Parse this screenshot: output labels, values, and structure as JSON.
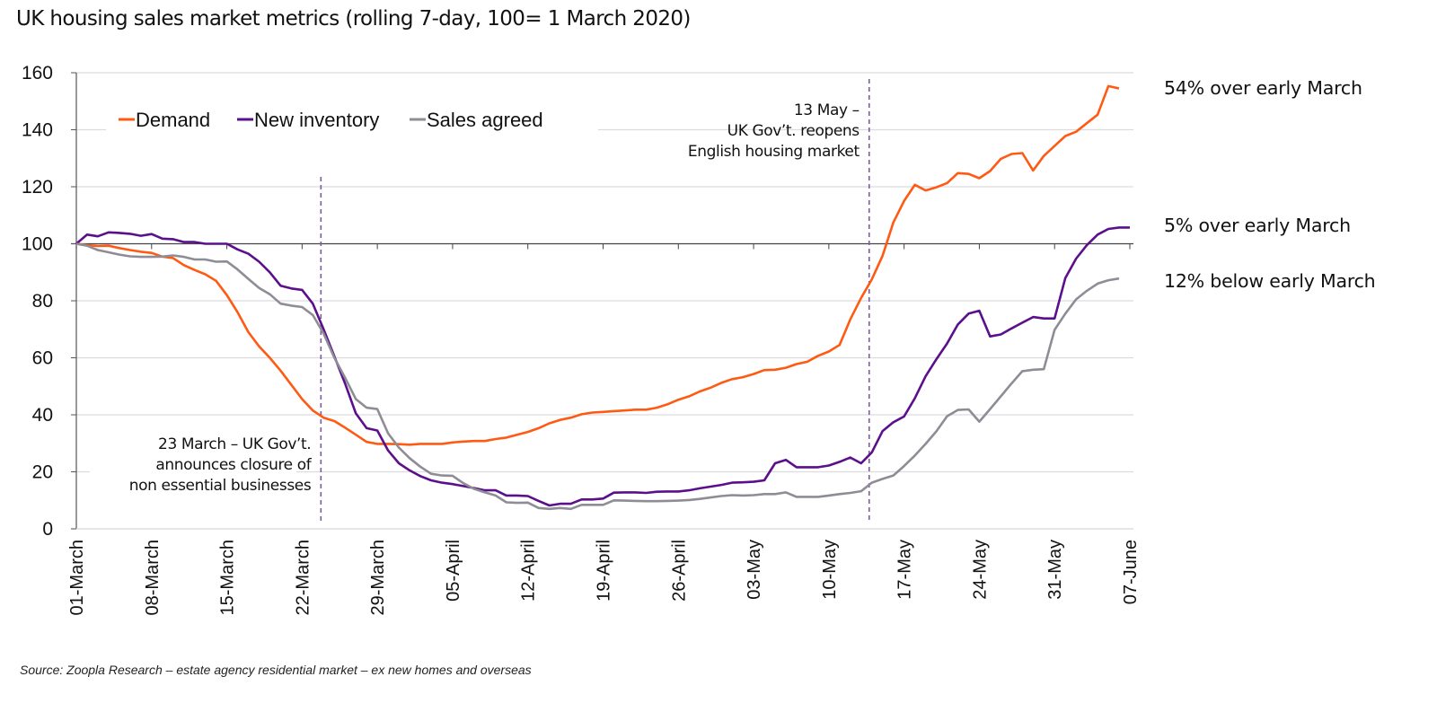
{
  "chart_data": {
    "type": "line",
    "title": "UK housing sales market metrics (rolling 7-day, 100= 1 March 2020)",
    "source": "Source: Zoopla Research – estate agency residential market – ex new homes and overseas",
    "xlabel": "",
    "ylabel": "",
    "ylim": [
      0,
      160
    ],
    "yticks": [
      0,
      20,
      40,
      60,
      80,
      100,
      120,
      140,
      160
    ],
    "baseline": 100,
    "grid": true,
    "legend_position": "top-left",
    "x_start": "01-March",
    "x_days": 98,
    "xtick_days": [
      0,
      7,
      14,
      21,
      28,
      35,
      42,
      49,
      56,
      63,
      70,
      77,
      84,
      91,
      98
    ],
    "xtick_labels": [
      "01-March",
      "08-March",
      "15-March",
      "22-March",
      "29-March",
      "05-April",
      "12-April",
      "19-April",
      "26-April",
      "03-May",
      "10-May",
      "17-May",
      "24-May",
      "31-May",
      "07-June"
    ],
    "series": [
      {
        "name": "Demand",
        "color": "#ff5a14",
        "points": [
          [
            0,
            100
          ],
          [
            1,
            99.5
          ],
          [
            2,
            99.2
          ],
          [
            3,
            99.3
          ],
          [
            4,
            98.5
          ],
          [
            5,
            97.8
          ],
          [
            6,
            97.2
          ],
          [
            7,
            96.8
          ],
          [
            8,
            95.5
          ],
          [
            9,
            95
          ],
          [
            10,
            92.5
          ],
          [
            11,
            90.8
          ],
          [
            12,
            89.3
          ],
          [
            13,
            87
          ],
          [
            14,
            82
          ],
          [
            15,
            76
          ],
          [
            16,
            69
          ],
          [
            17,
            64
          ],
          [
            18,
            60
          ],
          [
            19,
            55.5
          ],
          [
            20,
            50.5
          ],
          [
            21,
            45.5
          ],
          [
            22,
            41.5
          ],
          [
            23,
            39
          ],
          [
            24,
            37.8
          ],
          [
            25,
            35.5
          ],
          [
            26,
            33
          ],
          [
            27,
            30.5
          ],
          [
            28,
            29.8
          ],
          [
            29,
            29.8
          ],
          [
            30,
            29.7
          ],
          [
            31,
            29.5
          ],
          [
            32,
            29.8
          ],
          [
            33,
            29.8
          ],
          [
            34,
            29.8
          ],
          [
            35,
            30.3
          ],
          [
            36,
            30.6
          ],
          [
            37,
            30.8
          ],
          [
            38,
            30.8
          ],
          [
            39,
            31.5
          ],
          [
            40,
            32
          ],
          [
            41,
            33
          ],
          [
            42,
            34
          ],
          [
            43,
            35.3
          ],
          [
            44,
            37
          ],
          [
            45,
            38.2
          ],
          [
            46,
            39
          ],
          [
            47,
            40.2
          ],
          [
            48,
            40.8
          ],
          [
            49,
            41
          ],
          [
            50,
            41.3
          ],
          [
            51,
            41.5
          ],
          [
            52,
            41.8
          ],
          [
            53,
            41.8
          ],
          [
            54,
            42.5
          ],
          [
            55,
            43.7
          ],
          [
            56,
            45.3
          ],
          [
            57,
            46.5
          ],
          [
            58,
            48.2
          ],
          [
            59,
            49.5
          ],
          [
            60,
            51.2
          ],
          [
            61,
            52.5
          ],
          [
            62,
            53.2
          ],
          [
            63,
            54.3
          ],
          [
            64,
            55.7
          ],
          [
            65,
            55.8
          ],
          [
            66,
            56.5
          ],
          [
            67,
            57.8
          ],
          [
            68,
            58.6
          ],
          [
            69,
            60.7
          ],
          [
            70,
            62.2
          ],
          [
            71,
            64.5
          ],
          [
            72,
            73.5
          ],
          [
            73,
            81
          ],
          [
            74,
            87.5
          ],
          [
            75,
            95.8
          ],
          [
            76,
            107.5
          ],
          [
            77,
            115
          ],
          [
            78,
            120.7
          ],
          [
            79,
            118.7
          ],
          [
            80,
            119.8
          ],
          [
            81,
            121.3
          ],
          [
            82,
            124.8
          ],
          [
            83,
            124.5
          ],
          [
            84,
            123
          ],
          [
            85,
            125.5
          ],
          [
            86,
            129.8
          ],
          [
            87,
            131.5
          ],
          [
            88,
            131.8
          ],
          [
            89,
            125.7
          ],
          [
            90,
            130.8
          ],
          [
            91,
            134.3
          ],
          [
            92,
            137.8
          ],
          [
            93,
            139.3
          ],
          [
            94,
            142.3
          ],
          [
            95,
            145.3
          ],
          [
            96,
            155.3
          ],
          [
            97,
            154.5
          ]
        ],
        "end_label": "54% over early March"
      },
      {
        "name": "New inventory",
        "color": "#5c0f8b",
        "points": [
          [
            0,
            100
          ],
          [
            1,
            103.2
          ],
          [
            2,
            102.6
          ],
          [
            3,
            104
          ],
          [
            4,
            103.8
          ],
          [
            5,
            103.5
          ],
          [
            6,
            102.8
          ],
          [
            7,
            103.4
          ],
          [
            8,
            101.8
          ],
          [
            9,
            101.6
          ],
          [
            10,
            100.6
          ],
          [
            11,
            100.6
          ],
          [
            12,
            100
          ],
          [
            13,
            100
          ],
          [
            14,
            100
          ],
          [
            15,
            98
          ],
          [
            16,
            96.5
          ],
          [
            17,
            93.7
          ],
          [
            18,
            90
          ],
          [
            19,
            85.3
          ],
          [
            20,
            84.3
          ],
          [
            21,
            83.8
          ],
          [
            22,
            79
          ],
          [
            23,
            70
          ],
          [
            24,
            60.5
          ],
          [
            25,
            51
          ],
          [
            26,
            40.5
          ],
          [
            27,
            35.3
          ],
          [
            28,
            34.5
          ],
          [
            29,
            27.5
          ],
          [
            30,
            23
          ],
          [
            31,
            20.5
          ],
          [
            32,
            18.5
          ],
          [
            33,
            17
          ],
          [
            34,
            16.2
          ],
          [
            35,
            15.7
          ],
          [
            36,
            15
          ],
          [
            37,
            14.3
          ],
          [
            38,
            13.5
          ],
          [
            39,
            13.5
          ],
          [
            40,
            11.7
          ],
          [
            41,
            11.7
          ],
          [
            42,
            11.5
          ],
          [
            43,
            9.8
          ],
          [
            44,
            8.2
          ],
          [
            45,
            8.8
          ],
          [
            46,
            8.8
          ],
          [
            47,
            10.3
          ],
          [
            48,
            10.3
          ],
          [
            49,
            10.6
          ],
          [
            50,
            12.7
          ],
          [
            51,
            12.8
          ],
          [
            52,
            12.8
          ],
          [
            53,
            12.6
          ],
          [
            54,
            13
          ],
          [
            55,
            13.1
          ],
          [
            56,
            13.1
          ],
          [
            57,
            13.5
          ],
          [
            58,
            14.2
          ],
          [
            59,
            14.8
          ],
          [
            60,
            15.4
          ],
          [
            61,
            16.2
          ],
          [
            62,
            16.3
          ],
          [
            63,
            16.5
          ],
          [
            64,
            17
          ],
          [
            65,
            23
          ],
          [
            66,
            24.2
          ],
          [
            67,
            21.6
          ],
          [
            68,
            21.6
          ],
          [
            69,
            21.6
          ],
          [
            70,
            22.2
          ],
          [
            71,
            23.5
          ],
          [
            72,
            25
          ],
          [
            73,
            23
          ],
          [
            74,
            26.8
          ],
          [
            75,
            34.3
          ],
          [
            76,
            37.4
          ],
          [
            77,
            39.4
          ],
          [
            78,
            45.8
          ],
          [
            79,
            53.5
          ],
          [
            80,
            59.5
          ],
          [
            81,
            65
          ],
          [
            82,
            71.7
          ],
          [
            83,
            75.5
          ],
          [
            84,
            76.5
          ],
          [
            85,
            67.5
          ],
          [
            86,
            68.2
          ],
          [
            87,
            70.3
          ],
          [
            88,
            72.3
          ],
          [
            89,
            74.3
          ],
          [
            90,
            73.8
          ],
          [
            91,
            73.8
          ],
          [
            92,
            88
          ],
          [
            93,
            94.8
          ],
          [
            94,
            99.5
          ],
          [
            95,
            103.2
          ],
          [
            96,
            105.2
          ],
          [
            97,
            105.7
          ],
          [
            98,
            105.7
          ]
        ],
        "end_label": "5% over early March"
      },
      {
        "name": "Sales agreed",
        "color": "#8e8d96",
        "points": [
          [
            0,
            100
          ],
          [
            1,
            99.3
          ],
          [
            2,
            97.8
          ],
          [
            3,
            97
          ],
          [
            4,
            96.2
          ],
          [
            5,
            95.6
          ],
          [
            6,
            95.4
          ],
          [
            7,
            95.4
          ],
          [
            8,
            95.5
          ],
          [
            9,
            95.9
          ],
          [
            10,
            95.4
          ],
          [
            11,
            94.5
          ],
          [
            12,
            94.5
          ],
          [
            13,
            93.7
          ],
          [
            14,
            93.8
          ],
          [
            15,
            91
          ],
          [
            16,
            87.7
          ],
          [
            17,
            84.5
          ],
          [
            18,
            82.3
          ],
          [
            19,
            79
          ],
          [
            20,
            78.3
          ],
          [
            21,
            77.8
          ],
          [
            22,
            75
          ],
          [
            23,
            68.5
          ],
          [
            24,
            60
          ],
          [
            25,
            53
          ],
          [
            26,
            45.5
          ],
          [
            27,
            42.5
          ],
          [
            28,
            42
          ],
          [
            29,
            33.5
          ],
          [
            30,
            28.5
          ],
          [
            31,
            24.8
          ],
          [
            32,
            21.8
          ],
          [
            33,
            19.3
          ],
          [
            34,
            18.7
          ],
          [
            35,
            18.6
          ],
          [
            36,
            16
          ],
          [
            37,
            14
          ],
          [
            38,
            12.8
          ],
          [
            39,
            11.7
          ],
          [
            40,
            9.3
          ],
          [
            41,
            9.1
          ],
          [
            42,
            9.2
          ],
          [
            43,
            7.3
          ],
          [
            44,
            7
          ],
          [
            45,
            7.3
          ],
          [
            46,
            7
          ],
          [
            47,
            8.4
          ],
          [
            48,
            8.4
          ],
          [
            49,
            8.4
          ],
          [
            50,
            10
          ],
          [
            51,
            9.9
          ],
          [
            52,
            9.8
          ],
          [
            53,
            9.7
          ],
          [
            54,
            9.7
          ],
          [
            55,
            9.8
          ],
          [
            56,
            9.9
          ],
          [
            57,
            10.1
          ],
          [
            58,
            10.5
          ],
          [
            59,
            11
          ],
          [
            60,
            11.5
          ],
          [
            61,
            11.8
          ],
          [
            62,
            11.7
          ],
          [
            63,
            11.8
          ],
          [
            64,
            12.2
          ],
          [
            65,
            12.2
          ],
          [
            66,
            12.8
          ],
          [
            67,
            11.2
          ],
          [
            68,
            11.2
          ],
          [
            69,
            11.2
          ],
          [
            70,
            11.7
          ],
          [
            71,
            12.2
          ],
          [
            72,
            12.6
          ],
          [
            73,
            13.2
          ],
          [
            74,
            16.2
          ],
          [
            75,
            17.5
          ],
          [
            76,
            18.7
          ],
          [
            77,
            22
          ],
          [
            78,
            25.7
          ],
          [
            79,
            29.8
          ],
          [
            80,
            34.2
          ],
          [
            81,
            39.5
          ],
          [
            82,
            41.7
          ],
          [
            83,
            41.9
          ],
          [
            84,
            37.6
          ],
          [
            85,
            42
          ],
          [
            86,
            46.5
          ],
          [
            87,
            51
          ],
          [
            88,
            55.3
          ],
          [
            89,
            55.8
          ],
          [
            90,
            56
          ],
          [
            91,
            69.8
          ],
          [
            92,
            75.5
          ],
          [
            93,
            80.5
          ],
          [
            94,
            83.5
          ],
          [
            95,
            86
          ],
          [
            96,
            87.2
          ],
          [
            97,
            87.8
          ]
        ],
        "end_label": "12% below early March"
      }
    ],
    "annotations": [
      {
        "day": 22,
        "lines": [
          "23 March – UK Gov’t.",
          "announces closure of",
          "non essential businesses"
        ],
        "color": "#7b5c9e"
      },
      {
        "day": 73,
        "lines": [
          "13 May –",
          "UK Gov’t.  reopens",
          "English housing market"
        ],
        "color": "#7b5c9e"
      }
    ]
  }
}
